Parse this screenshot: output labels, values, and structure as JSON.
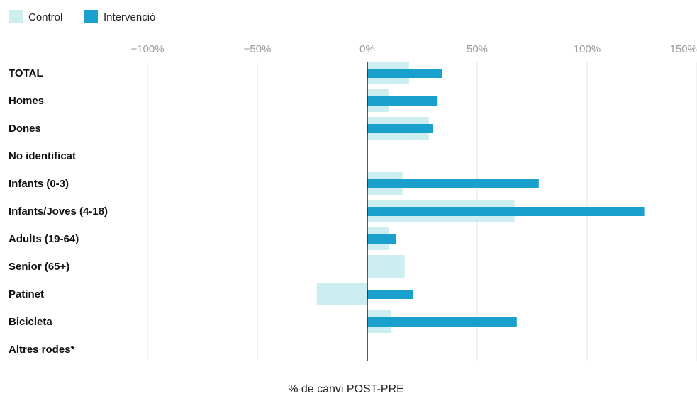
{
  "chart_data": {
    "type": "bar",
    "orientation": "horizontal",
    "categories": [
      "TOTAL",
      "Homes",
      "Dones",
      "No identificat",
      "Infants (0-3)",
      "Infants/Joves (4-18)",
      "Adults (19-64)",
      "Senior (65+)",
      "Patinet",
      "Bicicleta",
      "Altres rodes*"
    ],
    "series": [
      {
        "name": "Control",
        "color": "#cdeef0",
        "values": [
          19,
          10,
          28,
          null,
          16,
          67,
          10,
          17,
          -23,
          11,
          null
        ]
      },
      {
        "name": "Intervenció",
        "color": "#1aa0cc",
        "values": [
          34,
          32,
          30,
          null,
          78,
          126,
          13,
          null,
          21,
          68,
          null
        ]
      }
    ],
    "xlim": [
      -100,
      150
    ],
    "xticks": [
      -100,
      -50,
      0,
      50,
      100,
      150
    ],
    "xtick_labels": [
      "−100%",
      "−50%",
      "0%",
      "50%",
      "100%",
      "150%"
    ],
    "xlabel": "% de canvi POST-PRE",
    "grid": true,
    "legend_position": "top-left"
  }
}
